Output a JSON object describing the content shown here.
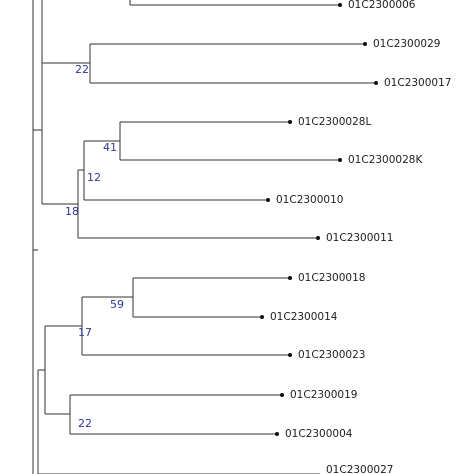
{
  "leaves": [
    {
      "label": "01C2300006"
    },
    {
      "label": "01C2300029"
    },
    {
      "label": "01C2300017"
    },
    {
      "label": "01C2300028L"
    },
    {
      "label": "01C2300028K"
    },
    {
      "label": "01C2300010"
    },
    {
      "label": "01C2300011"
    },
    {
      "label": "01C2300018"
    },
    {
      "label": "01C2300014"
    },
    {
      "label": "01C2300023"
    },
    {
      "label": "01C2300019"
    },
    {
      "label": "01C2300004"
    },
    {
      "label": "01C2300027"
    }
  ],
  "nodes": [
    {
      "support": "22"
    },
    {
      "support": "41"
    },
    {
      "support": "12"
    },
    {
      "support": "18"
    },
    {
      "support": "59"
    },
    {
      "support": "17"
    },
    {
      "support": "22"
    }
  ]
}
